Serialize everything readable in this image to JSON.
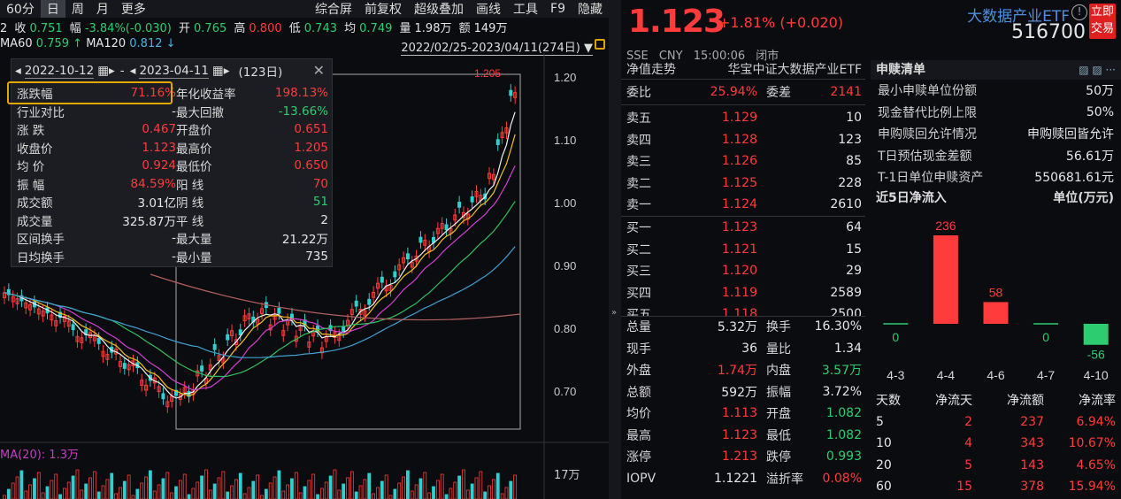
{
  "toolbar": {
    "period": "60分",
    "items": [
      "日",
      "周",
      "月",
      "更多"
    ],
    "right_items": [
      "综合屏",
      "前复权",
      "超级叠加",
      "画线",
      "工具",
      "F9",
      "隐藏"
    ]
  },
  "quote_row": {
    "prev_label": "2",
    "close_label": "收",
    "close_val": "0.751",
    "chg_label": "幅",
    "chg_val": "-3.84%(-0.030)",
    "open_label": "开",
    "open_val": "0.765",
    "high_label": "高",
    "high_val": "0.800",
    "low_label": "低",
    "low_val": "0.743",
    "avg_label": "均",
    "avg_val": "0.749",
    "vol_label": "量",
    "vol_val": "1.98万",
    "amt_label": "额",
    "amt_val": "149万"
  },
  "ma_row": {
    "ma60_label": "MA60",
    "ma60_val": "0.759",
    "ma120_label": "MA120",
    "ma120_val": "0.812"
  },
  "range": {
    "text": "2022/02/25-2023/04/11(274日)"
  },
  "axis": {
    "ticks": [
      "1.20",
      "1.10",
      "1.00",
      "0.90",
      "0.80",
      "0.70"
    ],
    "max_label": "1.205",
    "vol_tick": "17万",
    "vol_label": "MA(20): 1.3万"
  },
  "stats": {
    "start_date": "2022-10-12",
    "end_date": "2023-04-11",
    "days": "(123日)",
    "left": [
      {
        "label": "涨跌幅",
        "value": "71.16%",
        "color": "red"
      },
      {
        "label": "行业对比",
        "value": "-",
        "color": "white"
      },
      {
        "label": "涨    跌",
        "value": "0.467",
        "color": "red"
      },
      {
        "label": "收盘价",
        "value": "1.123",
        "color": "red"
      },
      {
        "label": "均    价",
        "value": "0.924",
        "color": "red"
      },
      {
        "label": "振    幅",
        "value": "84.59%",
        "color": "red"
      },
      {
        "label": "成交额",
        "value": "3.01亿",
        "color": "white"
      },
      {
        "label": "成交量",
        "value": "325.87万",
        "color": "white"
      },
      {
        "label": "区间换手",
        "value": "-",
        "color": "white"
      },
      {
        "label": "日均换手",
        "value": "-",
        "color": "white"
      }
    ],
    "right": [
      {
        "label": "年化收益率",
        "value": "198.13%",
        "color": "red"
      },
      {
        "label": "最大回撤",
        "value": "-13.66%",
        "color": "green"
      },
      {
        "label": "开盘价",
        "value": "0.651",
        "color": "red"
      },
      {
        "label": "最高价",
        "value": "1.205",
        "color": "red"
      },
      {
        "label": "最低价",
        "value": "0.650",
        "color": "red"
      },
      {
        "label": "阳    线",
        "value": "70",
        "color": "red"
      },
      {
        "label": "阴    线",
        "value": "51",
        "color": "green"
      },
      {
        "label": "平    线",
        "value": "2",
        "color": "white"
      },
      {
        "label": "最大量",
        "value": "21.22万",
        "color": "white"
      },
      {
        "label": "最小量",
        "value": "735",
        "color": "white"
      }
    ]
  },
  "mid": {
    "price": "1.123",
    "change": "+1.81% (+0.020)",
    "exchange": "SSE",
    "currency": "CNY",
    "time": "15:00:06",
    "status": "闭市",
    "nav_label": "净值走势",
    "index_name": "华宝中证大数据产业ETF",
    "weibi_label": "委比",
    "weibi_val": "25.94%",
    "weicha_label": "委差",
    "weicha_val": "2141",
    "asks": [
      {
        "label": "卖五",
        "price": "1.129",
        "vol": "10"
      },
      {
        "label": "卖四",
        "price": "1.128",
        "vol": "123"
      },
      {
        "label": "卖三",
        "price": "1.126",
        "vol": "85"
      },
      {
        "label": "卖二",
        "price": "1.125",
        "vol": "228"
      },
      {
        "label": "卖一",
        "price": "1.124",
        "vol": "2610"
      }
    ],
    "bids": [
      {
        "label": "买一",
        "price": "1.123",
        "vol": "64"
      },
      {
        "label": "买二",
        "price": "1.121",
        "vol": "15"
      },
      {
        "label": "买三",
        "price": "1.120",
        "vol": "29"
      },
      {
        "label": "买四",
        "price": "1.119",
        "vol": "2589"
      },
      {
        "label": "买五",
        "price": "1.118",
        "vol": "2500"
      }
    ],
    "details": [
      {
        "l1": "总量",
        "v1": "5.32万",
        "c1": "white",
        "l2": "换手",
        "v2": "16.30%",
        "c2": "white"
      },
      {
        "l1": "现手",
        "v1": "36",
        "c1": "white",
        "l2": "量比",
        "v2": "1.34",
        "c2": "white"
      },
      {
        "l1": "外盘",
        "v1": "1.74万",
        "c1": "red",
        "l2": "内盘",
        "v2": "3.57万",
        "c2": "green"
      },
      {
        "l1": "总额",
        "v1": "592万",
        "c1": "white",
        "l2": "振幅",
        "v2": "3.72%",
        "c2": "white"
      },
      {
        "l1": "均价",
        "v1": "1.113",
        "c1": "red",
        "l2": "开盘",
        "v2": "1.082",
        "c2": "green"
      },
      {
        "l1": "最高",
        "v1": "1.123",
        "c1": "red",
        "l2": "最低",
        "v2": "1.082",
        "c2": "green"
      },
      {
        "l1": "涨停",
        "v1": "1.213",
        "c1": "red",
        "l2": "跌停",
        "v2": "0.993",
        "c2": "green"
      },
      {
        "l1": "IOPV",
        "v1": "1.1221",
        "c1": "white",
        "l2": "溢折率",
        "v2": "0.08%",
        "c2": "red"
      }
    ]
  },
  "right": {
    "etf_name": "大数据产业ETF",
    "code": "516700",
    "trade_btn": "立即交易",
    "section_title": "申赎清单",
    "kv": [
      {
        "label": "最小申赎单位份额",
        "value": "50万"
      },
      {
        "label": "现金替代比例上限",
        "value": "50%"
      },
      {
        "label": "申购赎回允许情况",
        "value": "申购赎回皆允许"
      },
      {
        "label": "T日预估现金差额",
        "value": "56.61万"
      },
      {
        "label": "T-1日单位申赎资产",
        "value": "550681.61元"
      }
    ],
    "flow_title": "近5日净流入",
    "flow_unit": "单位(万元)",
    "flow_header": [
      "天数",
      "净流天",
      "净流额",
      "净流率"
    ],
    "flow_rows": [
      [
        "5",
        "2",
        "237",
        "6.94%"
      ],
      [
        "10",
        "4",
        "343",
        "10.67%"
      ],
      [
        "20",
        "5",
        "143",
        "4.65%"
      ],
      [
        "60",
        "15",
        "378",
        "15.94%"
      ]
    ]
  },
  "chart_data": [
    {
      "type": "bar",
      "title": "近5日净流入",
      "ylabel": "单位(万元)",
      "categories": [
        "4-3",
        "4-4",
        "4-6",
        "4-7",
        "4-10"
      ],
      "values": [
        0,
        236,
        58,
        0,
        -56
      ]
    }
  ]
}
